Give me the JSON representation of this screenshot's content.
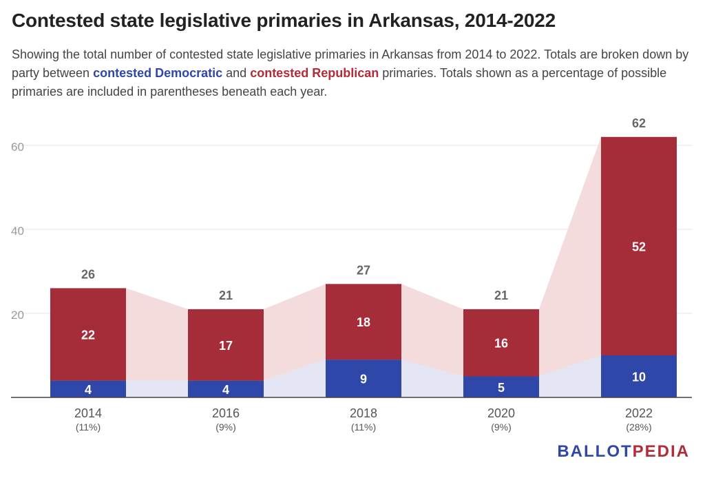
{
  "title": "Contested state legislative primaries in Arkansas, 2014-2022",
  "subtitle": {
    "part1": "Showing the total number of contested state legislative primaries in Arkansas from 2014 to 2022. Totals are broken down by party between ",
    "dem_label": "contested Democratic",
    "part2": " and ",
    "rep_label": "contested Republican",
    "part3": " primaries. Totals shown as a percentage of possible primaries are included in parentheses beneath each year."
  },
  "colors": {
    "democratic": "#2f47a8",
    "republican": "#a42d39",
    "dem_area": "#e3e5f4",
    "rep_area": "#f4dcdd",
    "grid": "#e4e4e4",
    "tick": "#9a9a9a",
    "total": "#666666"
  },
  "logo": {
    "part1": "BALLOT",
    "part2": "PEDIA"
  },
  "chart_data": {
    "type": "bar",
    "stacked": true,
    "categories": [
      "2014",
      "2016",
      "2018",
      "2020",
      "2022"
    ],
    "category_sublabels": [
      "(11%)",
      "(9%)",
      "(11%)",
      "(9%)",
      "(28%)"
    ],
    "series": [
      {
        "name": "contested Democratic",
        "values": [
          4,
          4,
          9,
          5,
          10
        ]
      },
      {
        "name": "contested Republican",
        "values": [
          22,
          17,
          18,
          16,
          52
        ]
      }
    ],
    "totals": [
      26,
      21,
      27,
      21,
      62
    ],
    "ylim": [
      0,
      60
    ],
    "yticks": [
      20,
      40,
      60
    ],
    "grid": true
  }
}
